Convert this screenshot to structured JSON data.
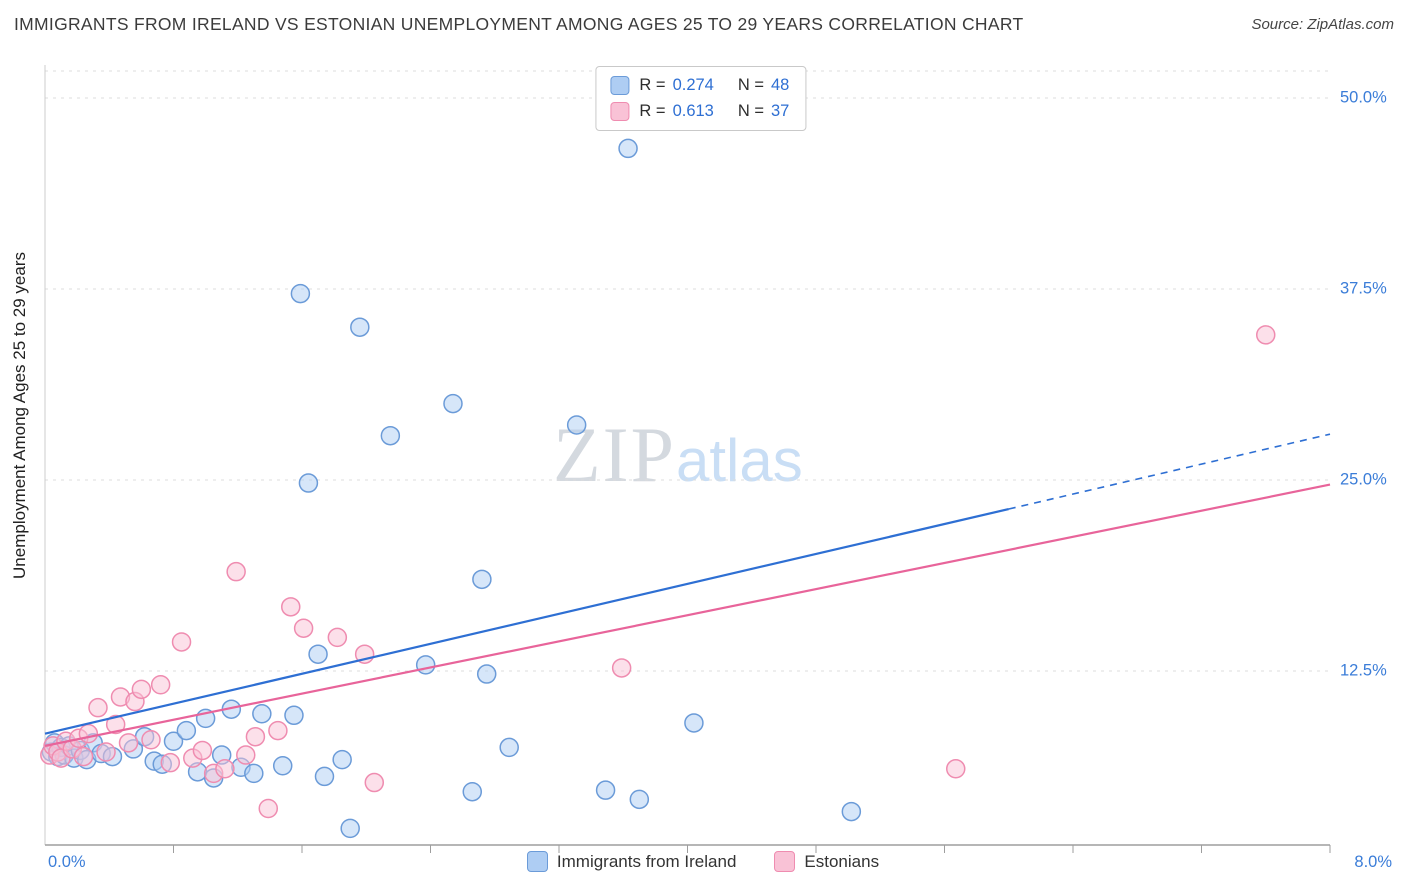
{
  "header": {
    "title": "IMMIGRANTS FROM IRELAND VS ESTONIAN UNEMPLOYMENT AMONG AGES 25 TO 29 YEARS CORRELATION CHART",
    "source": "Source: ZipAtlas.com"
  },
  "legend_box": {
    "rows": [
      {
        "label_r": "R =",
        "value_r": "0.274",
        "label_n": "N =",
        "value_n": "48"
      },
      {
        "label_r": "R =",
        "value_r": "0.613",
        "label_n": "N =",
        "value_n": "37"
      }
    ]
  },
  "watermark": {
    "zip": "ZIP",
    "atlas": "atlas"
  },
  "axes": {
    "y_title": "Unemployment Among Ages 25 to 29 years",
    "y_ticks": [
      "50.0%",
      "37.5%",
      "25.0%",
      "12.5%"
    ],
    "x_min_label": "0.0%",
    "x_max_label": "8.0%"
  },
  "bottom_legend": [
    {
      "label": "Immigrants from Ireland"
    },
    {
      "label": "Estonians"
    }
  ],
  "colors": {
    "accent_text": "#3b7dd8",
    "gridline": "#dcdcdc",
    "axis": "#9e9e9e"
  },
  "chart_data": {
    "type": "scatter",
    "title": "Immigrants from Ireland vs Estonian Unemployment Among Ages 25 to 29 years",
    "xlabel": "Immigrants from Ireland (%)",
    "ylabel": "Unemployment Among Ages 25 to 29 years",
    "x_range": [
      0,
      8
    ],
    "y_range": [
      0,
      52.2
    ],
    "y_gridlines": [
      12.5,
      25,
      37.5,
      50
    ],
    "x_tick_count": 10,
    "legend_position": "bottom-center",
    "series": [
      {
        "name": "Immigrants from Ireland",
        "slug": "ireland",
        "R": 0.274,
        "N": 48,
        "fill": "#aecdf3",
        "stroke": "#6b9bd8",
        "points": [
          [
            0.04,
            7.2
          ],
          [
            0.06,
            7.8
          ],
          [
            0.08,
            6.9
          ],
          [
            0.1,
            7.5
          ],
          [
            0.12,
            7.0
          ],
          [
            0.15,
            7.6
          ],
          [
            0.18,
            6.8
          ],
          [
            0.22,
            7.3
          ],
          [
            0.26,
            6.7
          ],
          [
            0.3,
            7.8
          ],
          [
            0.35,
            7.1
          ],
          [
            0.42,
            6.9
          ],
          [
            0.55,
            7.4
          ],
          [
            0.62,
            8.2
          ],
          [
            0.68,
            6.6
          ],
          [
            0.73,
            6.4
          ],
          [
            0.8,
            7.9
          ],
          [
            0.88,
            8.6
          ],
          [
            0.95,
            5.9
          ],
          [
            1.0,
            9.4
          ],
          [
            1.05,
            5.5
          ],
          [
            1.1,
            7.0
          ],
          [
            1.16,
            10.0
          ],
          [
            1.22,
            6.2
          ],
          [
            1.3,
            5.8
          ],
          [
            1.35,
            9.7
          ],
          [
            1.48,
            6.3
          ],
          [
            1.55,
            9.6
          ],
          [
            1.59,
            37.2
          ],
          [
            1.64,
            24.8
          ],
          [
            1.7,
            13.6
          ],
          [
            1.74,
            5.6
          ],
          [
            1.85,
            6.7
          ],
          [
            1.9,
            2.2
          ],
          [
            1.96,
            35.0
          ],
          [
            2.15,
            27.9
          ],
          [
            2.37,
            12.9
          ],
          [
            2.54,
            30.0
          ],
          [
            2.66,
            4.6
          ],
          [
            2.72,
            18.5
          ],
          [
            2.75,
            12.3
          ],
          [
            2.89,
            7.5
          ],
          [
            3.31,
            28.6
          ],
          [
            3.49,
            4.7
          ],
          [
            3.63,
            46.7
          ],
          [
            3.7,
            4.1
          ],
          [
            4.04,
            9.1
          ],
          [
            5.02,
            3.3
          ]
        ]
      },
      {
        "name": "Estonians",
        "slug": "estonians",
        "R": 0.613,
        "N": 37,
        "fill": "#f9c2d6",
        "stroke": "#ef8cb0",
        "points": [
          [
            0.03,
            7.0
          ],
          [
            0.05,
            7.6
          ],
          [
            0.08,
            7.2
          ],
          [
            0.1,
            6.8
          ],
          [
            0.13,
            7.9
          ],
          [
            0.17,
            7.4
          ],
          [
            0.21,
            8.1
          ],
          [
            0.24,
            6.9
          ],
          [
            0.27,
            8.4
          ],
          [
            0.33,
            10.1
          ],
          [
            0.38,
            7.2
          ],
          [
            0.44,
            9.0
          ],
          [
            0.47,
            10.8
          ],
          [
            0.52,
            7.8
          ],
          [
            0.56,
            10.5
          ],
          [
            0.6,
            11.3
          ],
          [
            0.66,
            8.0
          ],
          [
            0.72,
            11.6
          ],
          [
            0.78,
            6.5
          ],
          [
            0.85,
            14.4
          ],
          [
            0.92,
            6.8
          ],
          [
            0.98,
            7.3
          ],
          [
            1.05,
            5.8
          ],
          [
            1.12,
            6.1
          ],
          [
            1.19,
            19.0
          ],
          [
            1.25,
            7.0
          ],
          [
            1.31,
            8.2
          ],
          [
            1.39,
            3.5
          ],
          [
            1.45,
            8.6
          ],
          [
            1.53,
            16.7
          ],
          [
            1.61,
            15.3
          ],
          [
            1.82,
            14.7
          ],
          [
            1.99,
            13.6
          ],
          [
            2.05,
            5.2
          ],
          [
            3.59,
            12.7
          ],
          [
            5.67,
            6.1
          ],
          [
            7.6,
            34.5
          ]
        ]
      }
    ],
    "trend_lines": [
      {
        "name": "Immigrants from Ireland",
        "color": "#2e6fd3",
        "x_start": 0,
        "y_start": 8.4,
        "x_end": 8,
        "y_end": 28.0,
        "dash_from_x": 6.0
      },
      {
        "name": "Estonians",
        "color": "#e8649a",
        "x_start": 0,
        "y_start": 7.6,
        "x_end": 8,
        "y_end": 24.7,
        "dash_from_x": 8
      }
    ]
  }
}
